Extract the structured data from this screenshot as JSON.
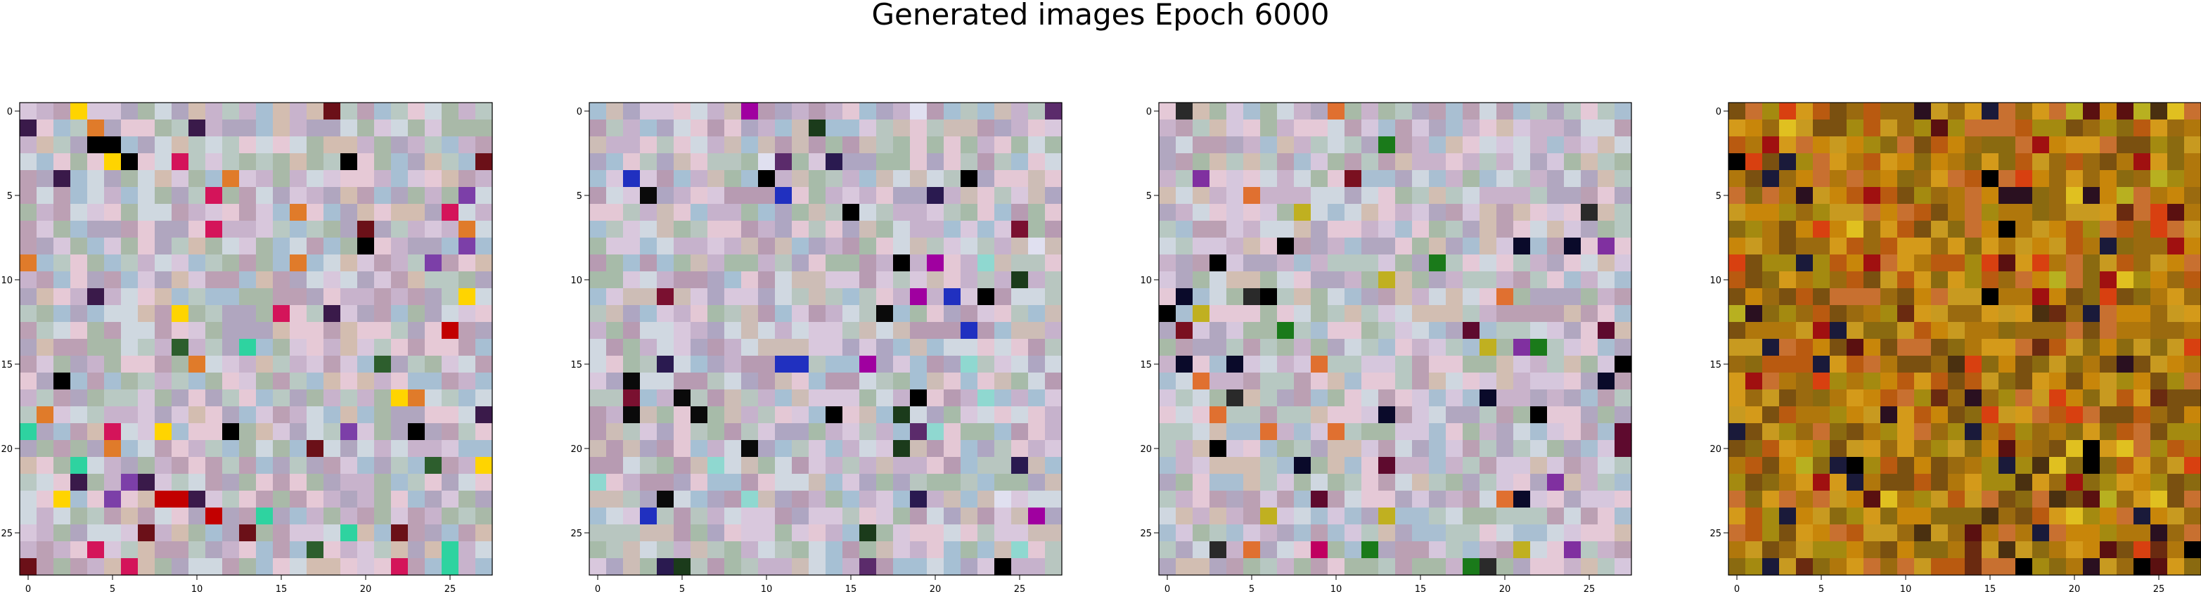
{
  "page": {
    "title": "Generated images Epoch 6000"
  },
  "chart_data": {
    "type": "heatmap",
    "title": "Generated images Epoch 6000",
    "grid_size": 28,
    "xlim": [
      -0.5,
      27.5
    ],
    "ylim": [
      27.5,
      -0.5
    ],
    "xticks": [
      0,
      5,
      10,
      15,
      20,
      25
    ],
    "yticks": [
      0,
      5,
      10,
      15,
      20,
      25
    ],
    "grid": false,
    "panels": [
      {
        "name": "",
        "palette": [
          "#c8b3cc",
          "#b9c9c3",
          "#d8c7dc",
          "#b0a6bf",
          "#cfd8e0",
          "#e6c9d6",
          "#a9b9a8",
          "#d3bdb0",
          "#bca0b4",
          "#a7bfd3"
        ],
        "accents": [
          "#000000",
          "#d4145a",
          "#6b1018",
          "#2d5e2d",
          "#2ed3a0",
          "#e07b2a",
          "#3a1a4a",
          "#ffd400",
          "#c20000",
          "#7c3fa8"
        ],
        "accent_rate": 0.09,
        "seed": 11
      },
      {
        "name": "",
        "palette": [
          "#c6b2cc",
          "#b8c6c0",
          "#d9c8dd",
          "#aea6c2",
          "#d0d8e1",
          "#e4c8d5",
          "#a7bba9",
          "#cdbdb6",
          "#b79bb2",
          "#a6c0d4"
        ],
        "accents": [
          "#000000",
          "#7a1030",
          "#2030c0",
          "#a000a0",
          "#0a0a0a",
          "#5b2b6b",
          "#1b3b1b",
          "#8fd8d0",
          "#e0e0f0",
          "#2a1a50"
        ],
        "accent_rate": 0.08,
        "seed": 29
      },
      {
        "name": "",
        "palette": [
          "#c9b3cb",
          "#b7c8c2",
          "#d6c7dd",
          "#b1a7c0",
          "#cfd7e0",
          "#e5c9d7",
          "#a8baa7",
          "#d2beb2",
          "#bba0b3",
          "#a9bfd2"
        ],
        "accents": [
          "#000000",
          "#7a1020",
          "#1a7a1a",
          "#c00060",
          "#2a2a2a",
          "#5e0a2e",
          "#c0b020",
          "#8030a0",
          "#0a0a2a",
          "#e07030"
        ],
        "accent_rate": 0.08,
        "seed": 47
      },
      {
        "name": "",
        "palette": [
          "#c8860a",
          "#b0770c",
          "#9a6a0f",
          "#d49a1a",
          "#8a6a10",
          "#b95a10",
          "#a48a10",
          "#c87030",
          "#7a5010",
          "#c89a20"
        ],
        "accents": [
          "#5a1010",
          "#2a1020",
          "#000000",
          "#e0c020",
          "#a01010",
          "#4a3010",
          "#d84010",
          "#6a2a10",
          "#1a1a3a",
          "#b8b020"
        ],
        "accent_rate": 0.14,
        "seed": 83
      }
    ]
  }
}
